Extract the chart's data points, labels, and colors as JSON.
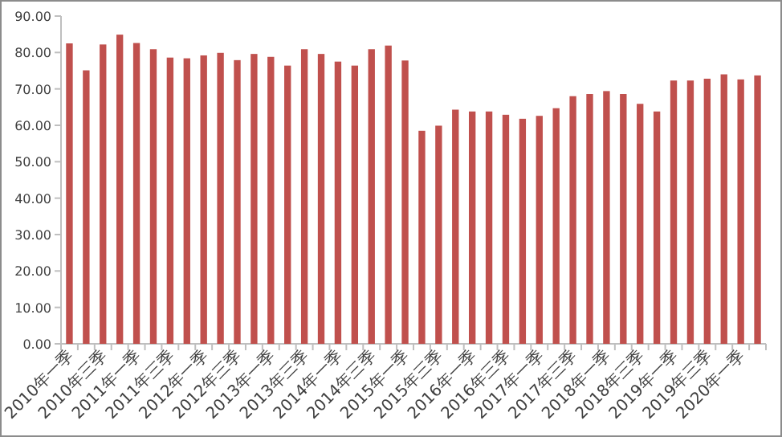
{
  "chart_data": {
    "type": "bar",
    "categories": [
      "2010年一季",
      null,
      "2010年三季",
      null,
      "2011年一季",
      null,
      "2011年三季",
      null,
      "2012年一季",
      null,
      "2012年三季",
      null,
      "2013年一季",
      null,
      "2013年三季",
      null,
      "2014年一季",
      null,
      "2014年三季",
      null,
      "2015年一季",
      null,
      "2015年三季",
      null,
      "2016年一季",
      null,
      "2016年三季",
      null,
      "2017年一季",
      null,
      "2017年三季",
      null,
      "2018年一季",
      null,
      "2018年三季",
      null,
      "2019年一季",
      null,
      "2019年三季",
      null,
      "2020年一季",
      null
    ],
    "values": [
      82.5,
      75.1,
      82.2,
      84.9,
      82.6,
      80.9,
      78.6,
      78.4,
      79.2,
      79.9,
      77.9,
      79.6,
      78.8,
      76.4,
      80.9,
      79.6,
      77.5,
      76.4,
      80.9,
      81.9,
      77.8,
      58.5,
      59.9,
      64.3,
      63.8,
      63.8,
      62.9,
      61.8,
      62.6,
      64.7,
      68.0,
      68.6,
      69.4,
      68.6,
      65.9,
      63.8,
      72.3,
      72.3,
      72.8,
      74.0,
      72.6,
      73.7
    ],
    "color": "#c0504d",
    "ylim": [
      0,
      90
    ],
    "yticks": [
      {
        "value": 0,
        "label": "0.00"
      },
      {
        "value": 10,
        "label": "10.00"
      },
      {
        "value": 20,
        "label": "20.00"
      },
      {
        "value": 30,
        "label": "30.00"
      },
      {
        "value": 40,
        "label": "40.00"
      },
      {
        "value": 50,
        "label": "50.00"
      },
      {
        "value": 60,
        "label": "60.00"
      },
      {
        "value": 70,
        "label": "70.00"
      },
      {
        "value": 80,
        "label": "80.00"
      },
      {
        "value": 90,
        "label": "90.00"
      }
    ],
    "grid": false
  }
}
